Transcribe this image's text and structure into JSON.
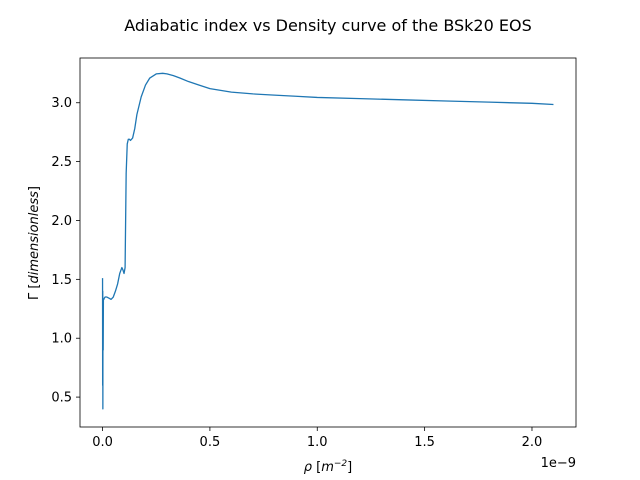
{
  "chart_data": {
    "type": "line",
    "title": "Adiabatic index vs Density curve of the BSk20 EOS",
    "xlabel_symbol": "ρ",
    "xlabel_unit_base": "m",
    "xlabel_unit_exp": "−2",
    "ylabel_symbol": "Γ",
    "ylabel_unit": "dimensionless",
    "x_offset_text": "1e−9",
    "x_scale": 1e-09,
    "xlim": [
      -0.105,
      2.205
    ],
    "ylim": [
      0.246,
      3.38
    ],
    "x_ticks": [
      0.0,
      0.5,
      1.0,
      1.5,
      2.0
    ],
    "x_tick_labels": [
      "0.0",
      "0.5",
      "1.0",
      "1.5",
      "2.0"
    ],
    "y_ticks": [
      0.5,
      1.0,
      1.5,
      2.0,
      2.5,
      3.0
    ],
    "y_tick_labels": [
      "0.5",
      "1.0",
      "1.5",
      "2.0",
      "2.5",
      "3.0"
    ],
    "grid": false,
    "line_color": "#1f77b4",
    "series": [
      {
        "name": "Gamma",
        "x": [
          0.0,
          0.0005,
          0.001,
          0.0015,
          0.002,
          0.003,
          0.004,
          0.006,
          0.008,
          0.012,
          0.02,
          0.03,
          0.04,
          0.05,
          0.06,
          0.07,
          0.08,
          0.09,
          0.095,
          0.1,
          0.105,
          0.11,
          0.115,
          0.12,
          0.125,
          0.13,
          0.14,
          0.15,
          0.16,
          0.18,
          0.2,
          0.22,
          0.25,
          0.28,
          0.3,
          0.33,
          0.36,
          0.4,
          0.45,
          0.5,
          0.6,
          0.7,
          0.8,
          0.9,
          1.0,
          1.2,
          1.4,
          1.6,
          1.8,
          2.0,
          2.1
        ],
        "y": [
          1.51,
          0.6,
          1.4,
          0.4,
          1.3,
          0.9,
          1.33,
          1.33,
          1.34,
          1.35,
          1.35,
          1.34,
          1.33,
          1.35,
          1.4,
          1.46,
          1.55,
          1.6,
          1.58,
          1.55,
          1.6,
          2.4,
          2.65,
          2.69,
          2.69,
          2.68,
          2.7,
          2.78,
          2.9,
          3.05,
          3.15,
          3.21,
          3.245,
          3.25,
          3.245,
          3.23,
          3.21,
          3.18,
          3.15,
          3.12,
          3.09,
          3.075,
          3.065,
          3.055,
          3.045,
          3.035,
          3.025,
          3.015,
          3.005,
          2.995,
          2.985
        ]
      }
    ]
  }
}
